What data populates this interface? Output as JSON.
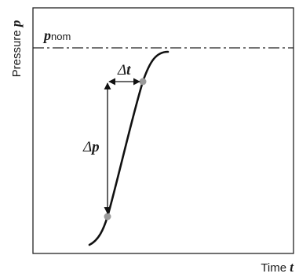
{
  "y_axis": {
    "label": "Pressure",
    "symbol": "p"
  },
  "x_axis": {
    "label": "Time",
    "symbol": "t"
  },
  "nominal_line": {
    "symbol": "p",
    "subscript": "nom"
  },
  "annotations": {
    "delta_p": {
      "delta": "Δ",
      "symbol": "p"
    },
    "delta_t": {
      "delta": "Δ",
      "symbol": "t"
    }
  },
  "colors": {
    "curve": "#111111",
    "frame": "#222222",
    "marker": "#9a9a9a"
  }
}
